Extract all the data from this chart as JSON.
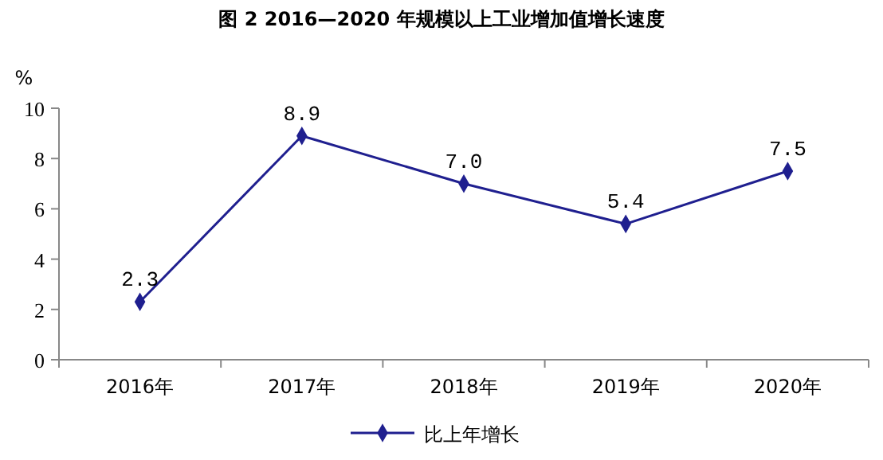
{
  "chart_data": {
    "type": "line",
    "title": "图 2 2016—2020 年规模以上工业增加值增长速度",
    "ylabel": "%",
    "categories": [
      "2016年",
      "2017年",
      "2018年",
      "2019年",
      "2020年"
    ],
    "series": [
      {
        "name": "比上年增长",
        "color": "#1f1f8f",
        "values": [
          2.3,
          8.9,
          7.0,
          5.4,
          7.5
        ],
        "value_labels": [
          "2.3",
          "8.9",
          "7.0",
          "5.4",
          "7.5"
        ]
      }
    ],
    "ylim": [
      0,
      10
    ],
    "yticks": [
      0,
      2,
      4,
      6,
      8,
      10
    ],
    "marker": "diamond",
    "line_style": "solid",
    "grid": false,
    "legend": "bottom"
  }
}
